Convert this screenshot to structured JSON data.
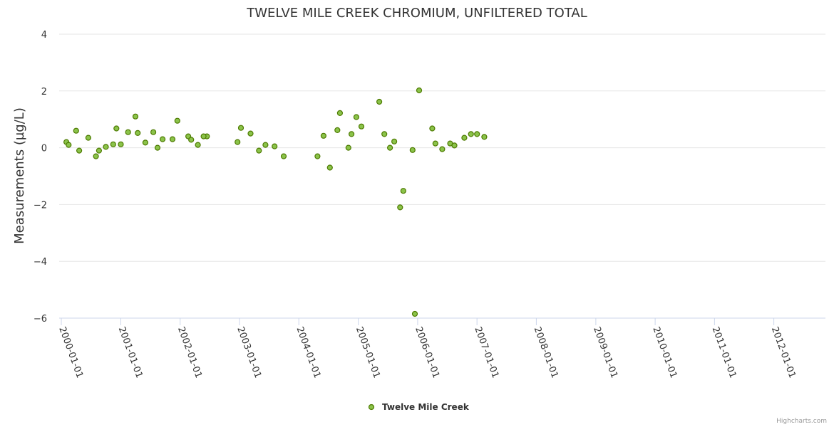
{
  "chart_data": {
    "type": "scatter",
    "title": "TWELVE MILE CREEK CHROMIUM, UNFILTERED TOTAL",
    "xlabel": "",
    "ylabel": "Measurements (µg/L)",
    "ylim": [
      -6,
      4
    ],
    "yticks": [
      4,
      2,
      0,
      -2,
      -4,
      -6
    ],
    "yticks_labels": [
      "4",
      "2",
      "0",
      "−2",
      "−4",
      "−6"
    ],
    "xlim": [
      "2000-01-01",
      "2012-12-31"
    ],
    "xticks": [
      "2000-01-01",
      "2001-01-01",
      "2002-01-01",
      "2003-01-01",
      "2004-01-01",
      "2005-01-01",
      "2006-01-01",
      "2007-01-01",
      "2008-01-01",
      "2009-01-01",
      "2010-01-01",
      "2011-01-01",
      "2012-01-01"
    ],
    "grid": true,
    "legend": "bottom-center",
    "credits": "Highcharts.com",
    "colors": {
      "marker_fill": "#8bc34a",
      "marker_stroke": "#4d7a00",
      "grid": "#e6e6e6",
      "axis": "#ccd6eb"
    },
    "series": [
      {
        "name": "Twelve Mile Creek",
        "points": [
          [
            "2000-02-01",
            0.2
          ],
          [
            "2000-02-15",
            0.1
          ],
          [
            "2000-04-01",
            0.6
          ],
          [
            "2000-04-20",
            -0.1
          ],
          [
            "2000-06-15",
            0.35
          ],
          [
            "2000-08-01",
            -0.3
          ],
          [
            "2000-08-20",
            -0.1
          ],
          [
            "2000-10-01",
            0.03
          ],
          [
            "2000-11-15",
            0.12
          ],
          [
            "2000-12-05",
            0.68
          ],
          [
            "2001-01-01",
            0.12
          ],
          [
            "2001-02-15",
            0.55
          ],
          [
            "2001-04-01",
            1.1
          ],
          [
            "2001-04-15",
            0.52
          ],
          [
            "2001-06-01",
            0.18
          ],
          [
            "2001-07-20",
            0.55
          ],
          [
            "2001-08-15",
            0.0
          ],
          [
            "2001-09-15",
            0.3
          ],
          [
            "2001-11-15",
            0.3
          ],
          [
            "2001-12-15",
            0.95
          ],
          [
            "2002-02-20",
            0.4
          ],
          [
            "2002-03-10",
            0.28
          ],
          [
            "2002-04-20",
            0.1
          ],
          [
            "2002-06-15",
            0.4
          ],
          [
            "2002-05-25",
            0.4
          ],
          [
            "2002-12-20",
            0.2
          ],
          [
            "2003-01-10",
            0.7
          ],
          [
            "2003-03-10",
            0.5
          ],
          [
            "2003-05-01",
            -0.1
          ],
          [
            "2003-06-10",
            0.1
          ],
          [
            "2003-08-05",
            0.05
          ],
          [
            "2003-09-30",
            -0.3
          ],
          [
            "2004-04-25",
            -0.3
          ],
          [
            "2004-06-01",
            0.42
          ],
          [
            "2004-07-10",
            -0.7
          ],
          [
            "2004-08-25",
            0.62
          ],
          [
            "2004-09-10",
            1.22
          ],
          [
            "2004-11-01",
            0.0
          ],
          [
            "2004-11-20",
            0.48
          ],
          [
            "2004-12-20",
            1.08
          ],
          [
            "2005-01-20",
            0.75
          ],
          [
            "2005-05-10",
            1.62
          ],
          [
            "2005-06-10",
            0.48
          ],
          [
            "2005-07-15",
            0.0
          ],
          [
            "2005-08-10",
            0.22
          ],
          [
            "2005-09-15",
            -2.1
          ],
          [
            "2005-10-05",
            -1.52
          ],
          [
            "2005-12-01",
            -0.08
          ],
          [
            "2005-12-15",
            -5.85
          ],
          [
            "2006-01-10",
            2.02
          ],
          [
            "2006-04-01",
            0.68
          ],
          [
            "2006-04-20",
            0.15
          ],
          [
            "2006-06-01",
            -0.05
          ],
          [
            "2006-07-20",
            0.15
          ],
          [
            "2006-08-15",
            0.08
          ],
          [
            "2006-10-15",
            0.35
          ],
          [
            "2006-11-25",
            0.48
          ],
          [
            "2007-01-01",
            0.48
          ],
          [
            "2007-02-15",
            0.38
          ]
        ]
      }
    ]
  }
}
